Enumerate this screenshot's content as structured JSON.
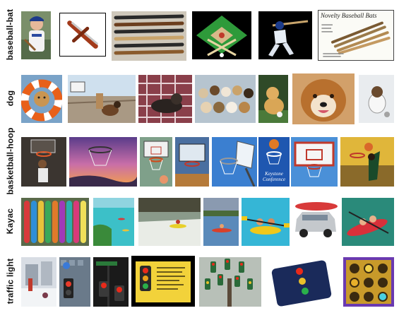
{
  "rows": [
    {
      "label": "baseball-bat",
      "images": [
        "boy-with-bat-photo",
        "crossed-bats-icon",
        "bats-on-table-photo",
        "baseball-diamond-logo",
        "batter-swinging-photo",
        "novelty-bats-page"
      ]
    },
    {
      "label": "dog",
      "images": [
        "dog-in-life-ring-photo",
        "dog-on-boardwalk-photo",
        "cats-and-dog-on-blanket-photo",
        "group-of-dogs-photo",
        "golden-retriever-photo",
        "collie-closeup-photo",
        "dog-in-snow-photo"
      ]
    },
    {
      "label": "basketball-hoop",
      "images": [
        "player-dunking-photo",
        "hoop-at-sunset-photo",
        "outdoor-hoop-photo",
        "court-hoop-photo",
        "hoop-net-sky-photo",
        "keystone-hoop-photo",
        "red-backboard-photo",
        "player-at-hoop-photo"
      ]
    },
    {
      "label": "Kayac",
      "images": [
        "colorful-kayaks-photo",
        "lake-kayakers-photo",
        "waterfall-kayak-photo",
        "river-kayak-photo",
        "tandem-kayak-photo",
        "kayak-on-car-photo",
        "red-kayak-photo"
      ]
    },
    {
      "label": "traffic light",
      "images": [
        "snowy-street-photo",
        "pedestrian-signal-photo",
        "street-signal-photo",
        "traffic-signal-poster",
        "tree-of-lights-sculpture",
        "signal-card-photo",
        "traffic-lights-grid-photo"
      ]
    }
  ],
  "novelty_page": {
    "title": "Novelty Baseball Bats"
  },
  "keystone_caption": "Keystone Conference",
  "colors": {
    "background": "#ffffff",
    "label": "#111111"
  }
}
